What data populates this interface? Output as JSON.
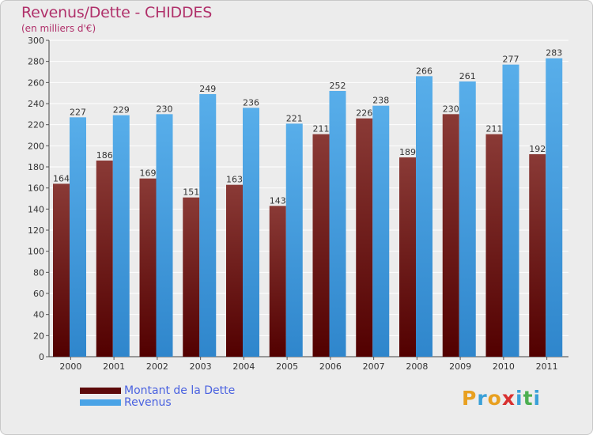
{
  "chart_data": {
    "type": "bar",
    "title": "Revenus/Dette - CHIDDES",
    "subtitle": "(en milliers d'€)",
    "xlabel": "",
    "ylabel": "",
    "categories": [
      "2000",
      "2001",
      "2002",
      "2003",
      "2004",
      "2005",
      "2006",
      "2007",
      "2008",
      "2009",
      "2010",
      "2011"
    ],
    "series": [
      {
        "name": "Montant de la Dette",
        "values": [
          164,
          186,
          169,
          151,
          163,
          143,
          211,
          226,
          189,
          230,
          211,
          192
        ],
        "color": "#7a1f24"
      },
      {
        "name": "Revenus",
        "values": [
          227,
          229,
          230,
          249,
          236,
          221,
          252,
          238,
          266,
          261,
          277,
          283
        ],
        "color": "#4aa3e6"
      }
    ],
    "ylim": [
      0,
      300
    ],
    "yticks": [
      0,
      20,
      40,
      60,
      80,
      100,
      120,
      140,
      160,
      180,
      200,
      220,
      240,
      260,
      280,
      300
    ],
    "grid": true,
    "legend_position": "bottom-left"
  },
  "logo": {
    "letters": [
      "P",
      "r",
      "o",
      "x",
      "i",
      "t",
      "i"
    ],
    "colors": [
      "#e8a020",
      "#3aa0d8",
      "#e8a020",
      "#d83030",
      "#3aa0d8",
      "#4caf50",
      "#3aa0d8"
    ]
  }
}
